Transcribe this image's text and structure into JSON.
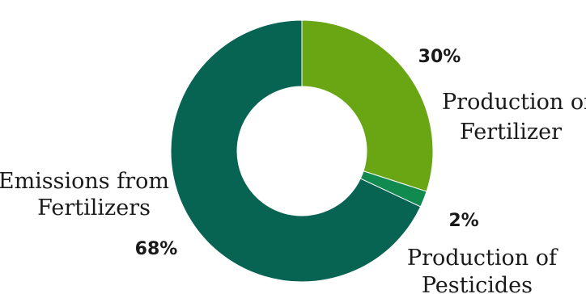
{
  "chart_data": {
    "type": "pie",
    "donut": true,
    "title": "",
    "slices": [
      {
        "label_lines": [
          "Production of",
          "Fertilizer"
        ],
        "value": 30,
        "value_label": "30%",
        "color": "#6aa514"
      },
      {
        "label_lines": [
          "Production of",
          "Pesticides"
        ],
        "value": 2,
        "value_label": "2%",
        "color": "#108a4e"
      },
      {
        "label_lines": [
          "Emissions from",
          "Fertilizers"
        ],
        "value": 68,
        "value_label": "68%",
        "color": "#076352"
      }
    ],
    "legend": "none",
    "start_angle_deg": 0,
    "direction": "clockwise"
  }
}
